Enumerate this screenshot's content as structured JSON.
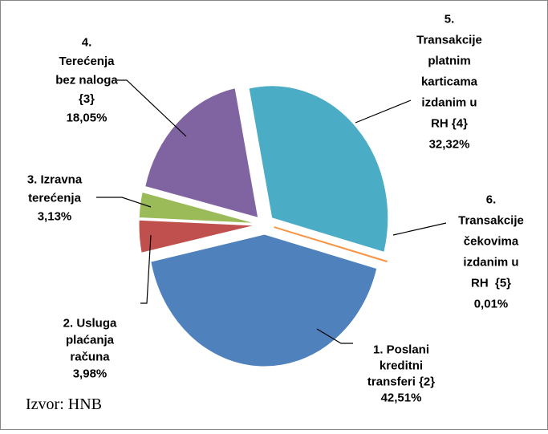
{
  "chart_data": {
    "type": "pie",
    "categories": [
      [
        "1. Poslani",
        "kreditni",
        "transferi {2}"
      ],
      [
        "2. Usluga",
        "plaćanja",
        "računa"
      ],
      [
        "3. Izravna",
        "terećenja"
      ],
      [
        "4.",
        "Terećenja",
        "bez naloga",
        "{3}"
      ],
      [
        "5.",
        "Transakcije",
        "platnim",
        "karticama",
        "izdanim u",
        "RH {4}"
      ],
      [
        "6.",
        "Transakcije",
        "čekovima",
        "izdanim u",
        "RH  {5}"
      ]
    ],
    "values": [
      42.51,
      3.98,
      3.13,
      18.05,
      32.32,
      0.01
    ],
    "value_labels": [
      "42,51%",
      "3,98%",
      "3,13%",
      "18,05%",
      "32,32%",
      "0,01%"
    ],
    "colors": [
      "#4f81bd",
      "#c0504d",
      "#9bbb59",
      "#8064a2",
      "#4bacc6",
      "#f79646"
    ],
    "source": "Izvor: HNB"
  }
}
